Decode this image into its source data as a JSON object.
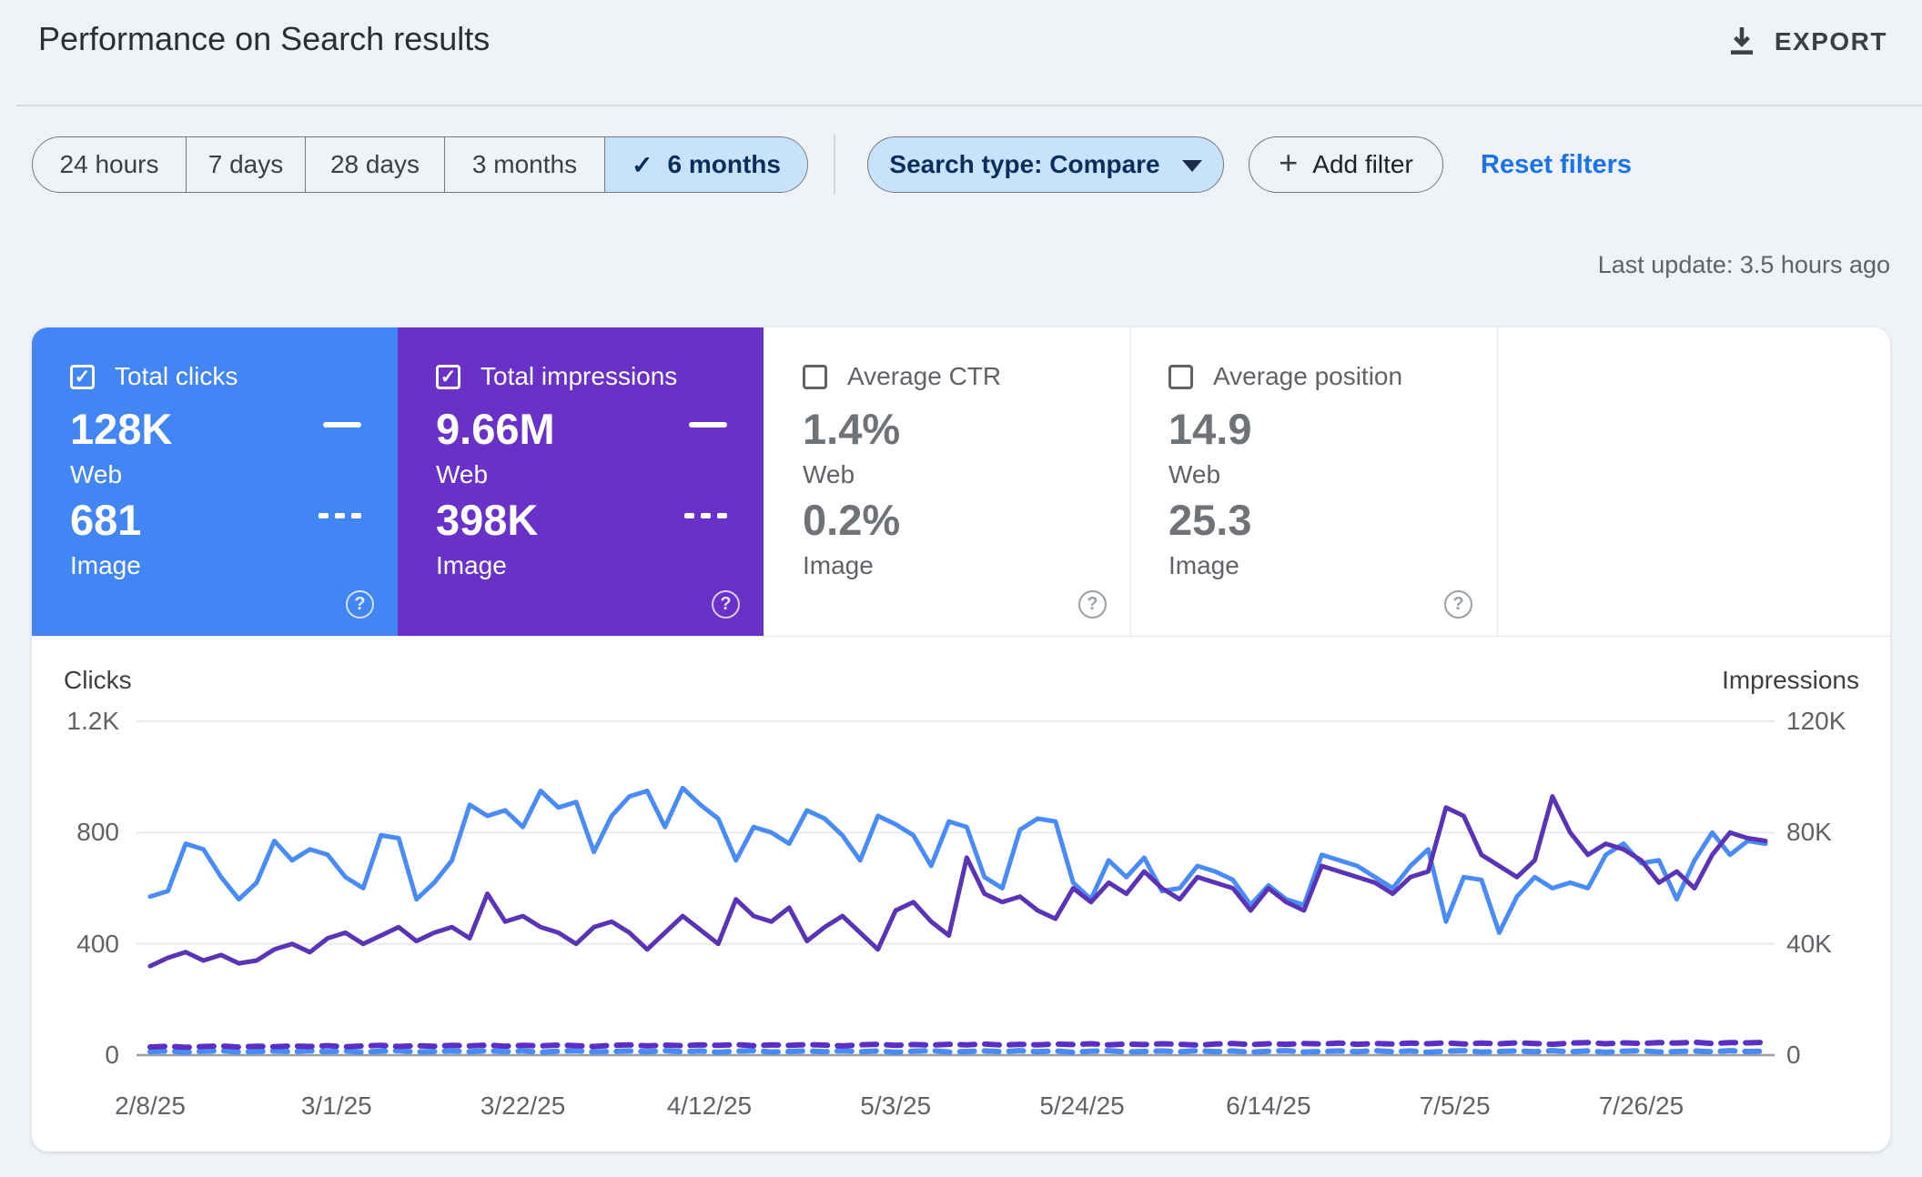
{
  "header": {
    "title": "Performance on Search results",
    "export_label": "EXPORT"
  },
  "filters": {
    "date_ranges": [
      "24 hours",
      "7 days",
      "28 days",
      "3 months",
      "6 months"
    ],
    "selected_range": "6 months",
    "search_type_label": "Search type: Compare",
    "add_filter_label": "Add filter",
    "reset_label": "Reset filters"
  },
  "status": {
    "last_update": "Last update: 3.5 hours ago"
  },
  "glyphs": {
    "help": "?",
    "check": "✓",
    "plus": "+"
  },
  "colors": {
    "clicks_blue": "#4285f4",
    "impressions_purple": "#6931c7",
    "line_blue": "#4a8cf7",
    "line_purple": "#5b33b5",
    "dash_purple": "#5b2fc4",
    "selected_chip_bg": "#c8e2fb",
    "link_blue": "#1a73e8"
  },
  "metrics": [
    {
      "label": "Total clicks",
      "checked": true,
      "web_value": "128K",
      "web_label": "Web",
      "image_value": "681",
      "image_label": "Image",
      "bg": "#4285f4"
    },
    {
      "label": "Total impressions",
      "checked": true,
      "web_value": "9.66M",
      "web_label": "Web",
      "image_value": "398K",
      "image_label": "Image",
      "bg": "#6931c7"
    },
    {
      "label": "Average CTR",
      "checked": false,
      "web_value": "1.4%",
      "web_label": "Web",
      "image_value": "0.2%",
      "image_label": "Image",
      "bg": "#ffffff"
    },
    {
      "label": "Average position",
      "checked": false,
      "web_value": "14.9",
      "web_label": "Web",
      "image_value": "25.3",
      "image_label": "Image",
      "bg": "#ffffff"
    }
  ],
  "chart_data": {
    "type": "line",
    "grid": true,
    "left_axis": {
      "title": "Clicks",
      "ticks": [
        "1.2K",
        "800",
        "400",
        "0"
      ],
      "max": 1200
    },
    "right_axis": {
      "title": "Impressions",
      "ticks": [
        "120K",
        "80K",
        "40K",
        "0"
      ],
      "max": 120000
    },
    "x_ticks": {
      "days": [
        0,
        21,
        42,
        63,
        84,
        105,
        126,
        147,
        168
      ],
      "labels": [
        "2/8/25",
        "3/1/25",
        "3/22/25",
        "4/12/25",
        "5/3/25",
        "5/24/25",
        "6/14/25",
        "7/5/25",
        "7/26/25"
      ]
    },
    "total_days": 182,
    "series": [
      {
        "name": "Web clicks",
        "axis": "left",
        "style": "solid",
        "color": "#4a8cf7",
        "width": 5,
        "step_days": 2,
        "values": [
          570,
          590,
          760,
          740,
          640,
          560,
          620,
          770,
          700,
          740,
          720,
          640,
          600,
          790,
          780,
          560,
          620,
          700,
          900,
          860,
          880,
          820,
          950,
          890,
          910,
          730,
          860,
          930,
          950,
          820,
          960,
          900,
          850,
          700,
          820,
          800,
          760,
          880,
          850,
          790,
          700,
          860,
          830,
          790,
          680,
          840,
          820,
          640,
          600,
          810,
          850,
          840,
          620,
          560,
          700,
          640,
          710,
          590,
          600,
          680,
          660,
          630,
          540,
          610,
          560,
          540,
          720,
          700,
          680,
          640,
          600,
          680,
          740,
          480,
          640,
          630,
          440,
          570,
          640,
          600,
          620,
          600,
          720,
          760,
          690,
          700,
          560,
          700,
          800,
          720,
          770,
          760
        ]
      },
      {
        "name": "Web impressions",
        "axis": "right",
        "style": "solid",
        "color": "#5b33b5",
        "width": 5,
        "step_days": 2,
        "values": [
          32000,
          35000,
          37000,
          34000,
          36000,
          33000,
          34000,
          38000,
          40000,
          37000,
          42000,
          44000,
          40000,
          43000,
          46000,
          41000,
          44000,
          46000,
          42000,
          58000,
          48000,
          50000,
          46000,
          44000,
          40000,
          46000,
          48000,
          44000,
          38000,
          44000,
          50000,
          45000,
          40000,
          56000,
          50000,
          48000,
          53000,
          41000,
          46000,
          50000,
          44000,
          38000,
          52000,
          55000,
          48000,
          43000,
          71000,
          58000,
          55000,
          57000,
          52000,
          49000,
          60000,
          55000,
          62000,
          58000,
          66000,
          60000,
          56000,
          64000,
          62000,
          60000,
          52000,
          60000,
          55000,
          52000,
          68000,
          66000,
          64000,
          62000,
          58000,
          64000,
          66000,
          89000,
          86000,
          72000,
          68000,
          64000,
          70000,
          93000,
          80000,
          72000,
          76000,
          74000,
          70000,
          62000,
          66000,
          60000,
          72000,
          80000,
          78000,
          77000
        ]
      },
      {
        "name": "Image clicks",
        "axis": "left",
        "style": "dashed",
        "color": "#4a8cf7",
        "width": 6,
        "step_days": 2,
        "values": [
          12,
          15,
          10,
          14,
          16,
          11,
          13,
          15,
          12,
          16,
          12,
          15,
          10,
          14,
          16,
          11,
          13,
          15,
          12,
          16,
          12,
          15,
          10,
          14,
          16,
          11,
          13,
          15,
          12,
          16,
          12,
          15,
          10,
          14,
          16,
          11,
          13,
          15,
          12,
          16,
          12,
          15,
          10,
          14,
          16,
          11,
          13,
          15,
          12,
          16,
          12,
          15,
          10,
          14,
          16,
          11,
          13,
          15,
          12,
          16,
          12,
          15,
          10,
          14,
          16,
          11,
          13,
          15,
          12,
          16,
          12,
          15,
          10,
          14,
          16,
          11,
          13,
          15,
          12,
          16,
          12,
          15,
          10,
          14,
          16,
          11,
          13,
          15,
          12,
          16,
          13,
          14
        ]
      },
      {
        "name": "Image impressions",
        "axis": "right",
        "style": "dashed",
        "color": "#5b2fc4",
        "width": 6,
        "step_days": 2,
        "values": [
          2900,
          3200,
          2800,
          3100,
          3300,
          2900,
          3200,
          3000,
          3300,
          3100,
          3400,
          3000,
          3300,
          3500,
          3100,
          3400,
          3200,
          3500,
          3300,
          3600,
          3200,
          3500,
          3300,
          3600,
          3400,
          3100,
          3500,
          3700,
          3300,
          3600,
          3400,
          3700,
          3500,
          3800,
          3400,
          3700,
          3500,
          3800,
          3600,
          3300,
          3700,
          3900,
          3500,
          3800,
          3600,
          3900,
          3700,
          4000,
          3600,
          3900,
          3700,
          4000,
          3800,
          4100,
          3700,
          4000,
          3800,
          4100,
          3900,
          3600,
          4000,
          4200,
          3800,
          4100,
          3900,
          4200,
          4000,
          4300,
          3900,
          4200,
          4000,
          4300,
          4100,
          4400,
          4000,
          4300,
          4100,
          4400,
          4200,
          3900,
          4300,
          4500,
          4100,
          4400,
          4200,
          4500,
          4300,
          4600,
          4200,
          4500,
          4400,
          4600
        ]
      }
    ]
  }
}
